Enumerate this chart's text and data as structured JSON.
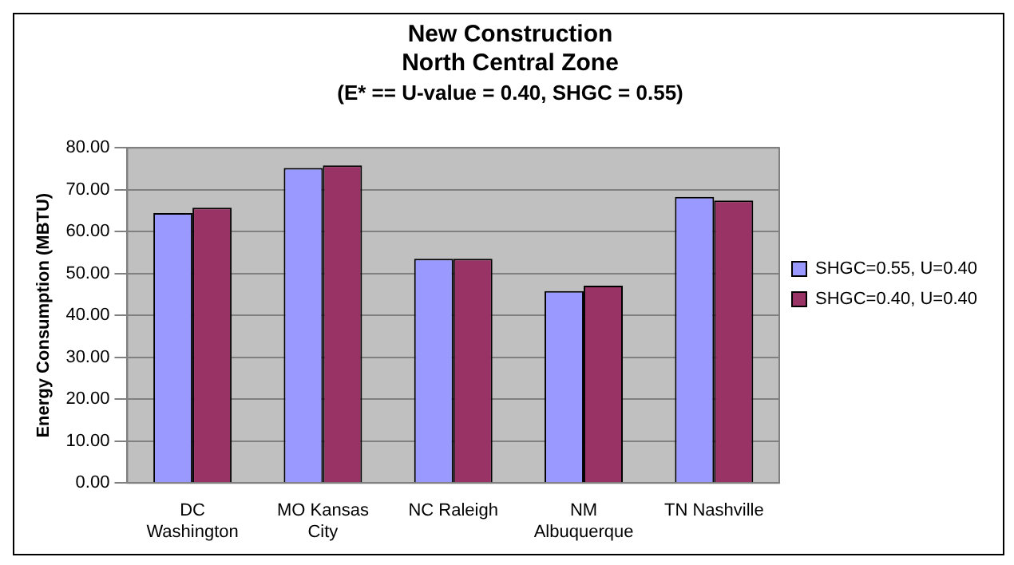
{
  "chart_data": {
    "type": "bar",
    "title": "New Construction\nNorth Central Zone",
    "subtitle": "(E* == U-value = 0.40, SHGC = 0.55)",
    "ylabel": "Energy Consumption (MBTU)",
    "categories": [
      "DC Washington",
      "MO Kansas City",
      "NC Raleigh",
      "NM Albuquerque",
      "TN Nashville"
    ],
    "series": [
      {
        "name": "SHGC=0.55, U=0.40",
        "color": "#9999ff",
        "values": [
          64.4,
          75.2,
          53.5,
          45.8,
          68.3
        ]
      },
      {
        "name": "SHGC=0.40, U=0.40",
        "color": "#993366",
        "values": [
          65.7,
          75.8,
          53.5,
          47.1,
          67.4
        ]
      }
    ],
    "ylim": [
      0,
      80
    ],
    "yticks": [
      {
        "value": 0,
        "label": "0.00"
      },
      {
        "value": 10,
        "label": "10.00"
      },
      {
        "value": 20,
        "label": "20.00"
      },
      {
        "value": 30,
        "label": "30.00"
      },
      {
        "value": 40,
        "label": "40.00"
      },
      {
        "value": 50,
        "label": "50.00"
      },
      {
        "value": 60,
        "label": "60.00"
      },
      {
        "value": 70,
        "label": "70.00"
      },
      {
        "value": 80,
        "label": "80.00"
      }
    ],
    "grid": "y",
    "legend": "right"
  }
}
